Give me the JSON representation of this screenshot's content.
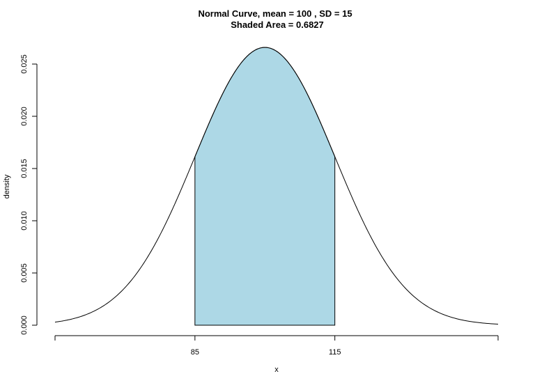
{
  "chart_data": {
    "type": "area",
    "title": "Normal Curve, mean =  100 , SD =  15",
    "subtitle": "Shaded Area =  0.6827",
    "xlabel": "x",
    "ylabel": "density",
    "distribution": {
      "mean": 100,
      "sd": 15
    },
    "shaded_interval": [
      85,
      115
    ],
    "shaded_area": 0.6827,
    "xlim": [
      55,
      150
    ],
    "ylim": [
      0,
      0.0266
    ],
    "x_ticks": [
      55,
      85,
      115,
      150
    ],
    "x_tick_labels": [
      "",
      "85",
      "115",
      ""
    ],
    "y_ticks": [
      0.0,
      0.005,
      0.01,
      0.015,
      0.02,
      0.025
    ],
    "y_tick_labels": [
      "0.000",
      "0.005",
      "0.010",
      "0.015",
      "0.020",
      "0.025"
    ],
    "grid": false,
    "colors": {
      "shade": "#add8e6",
      "line": "#000000"
    }
  }
}
